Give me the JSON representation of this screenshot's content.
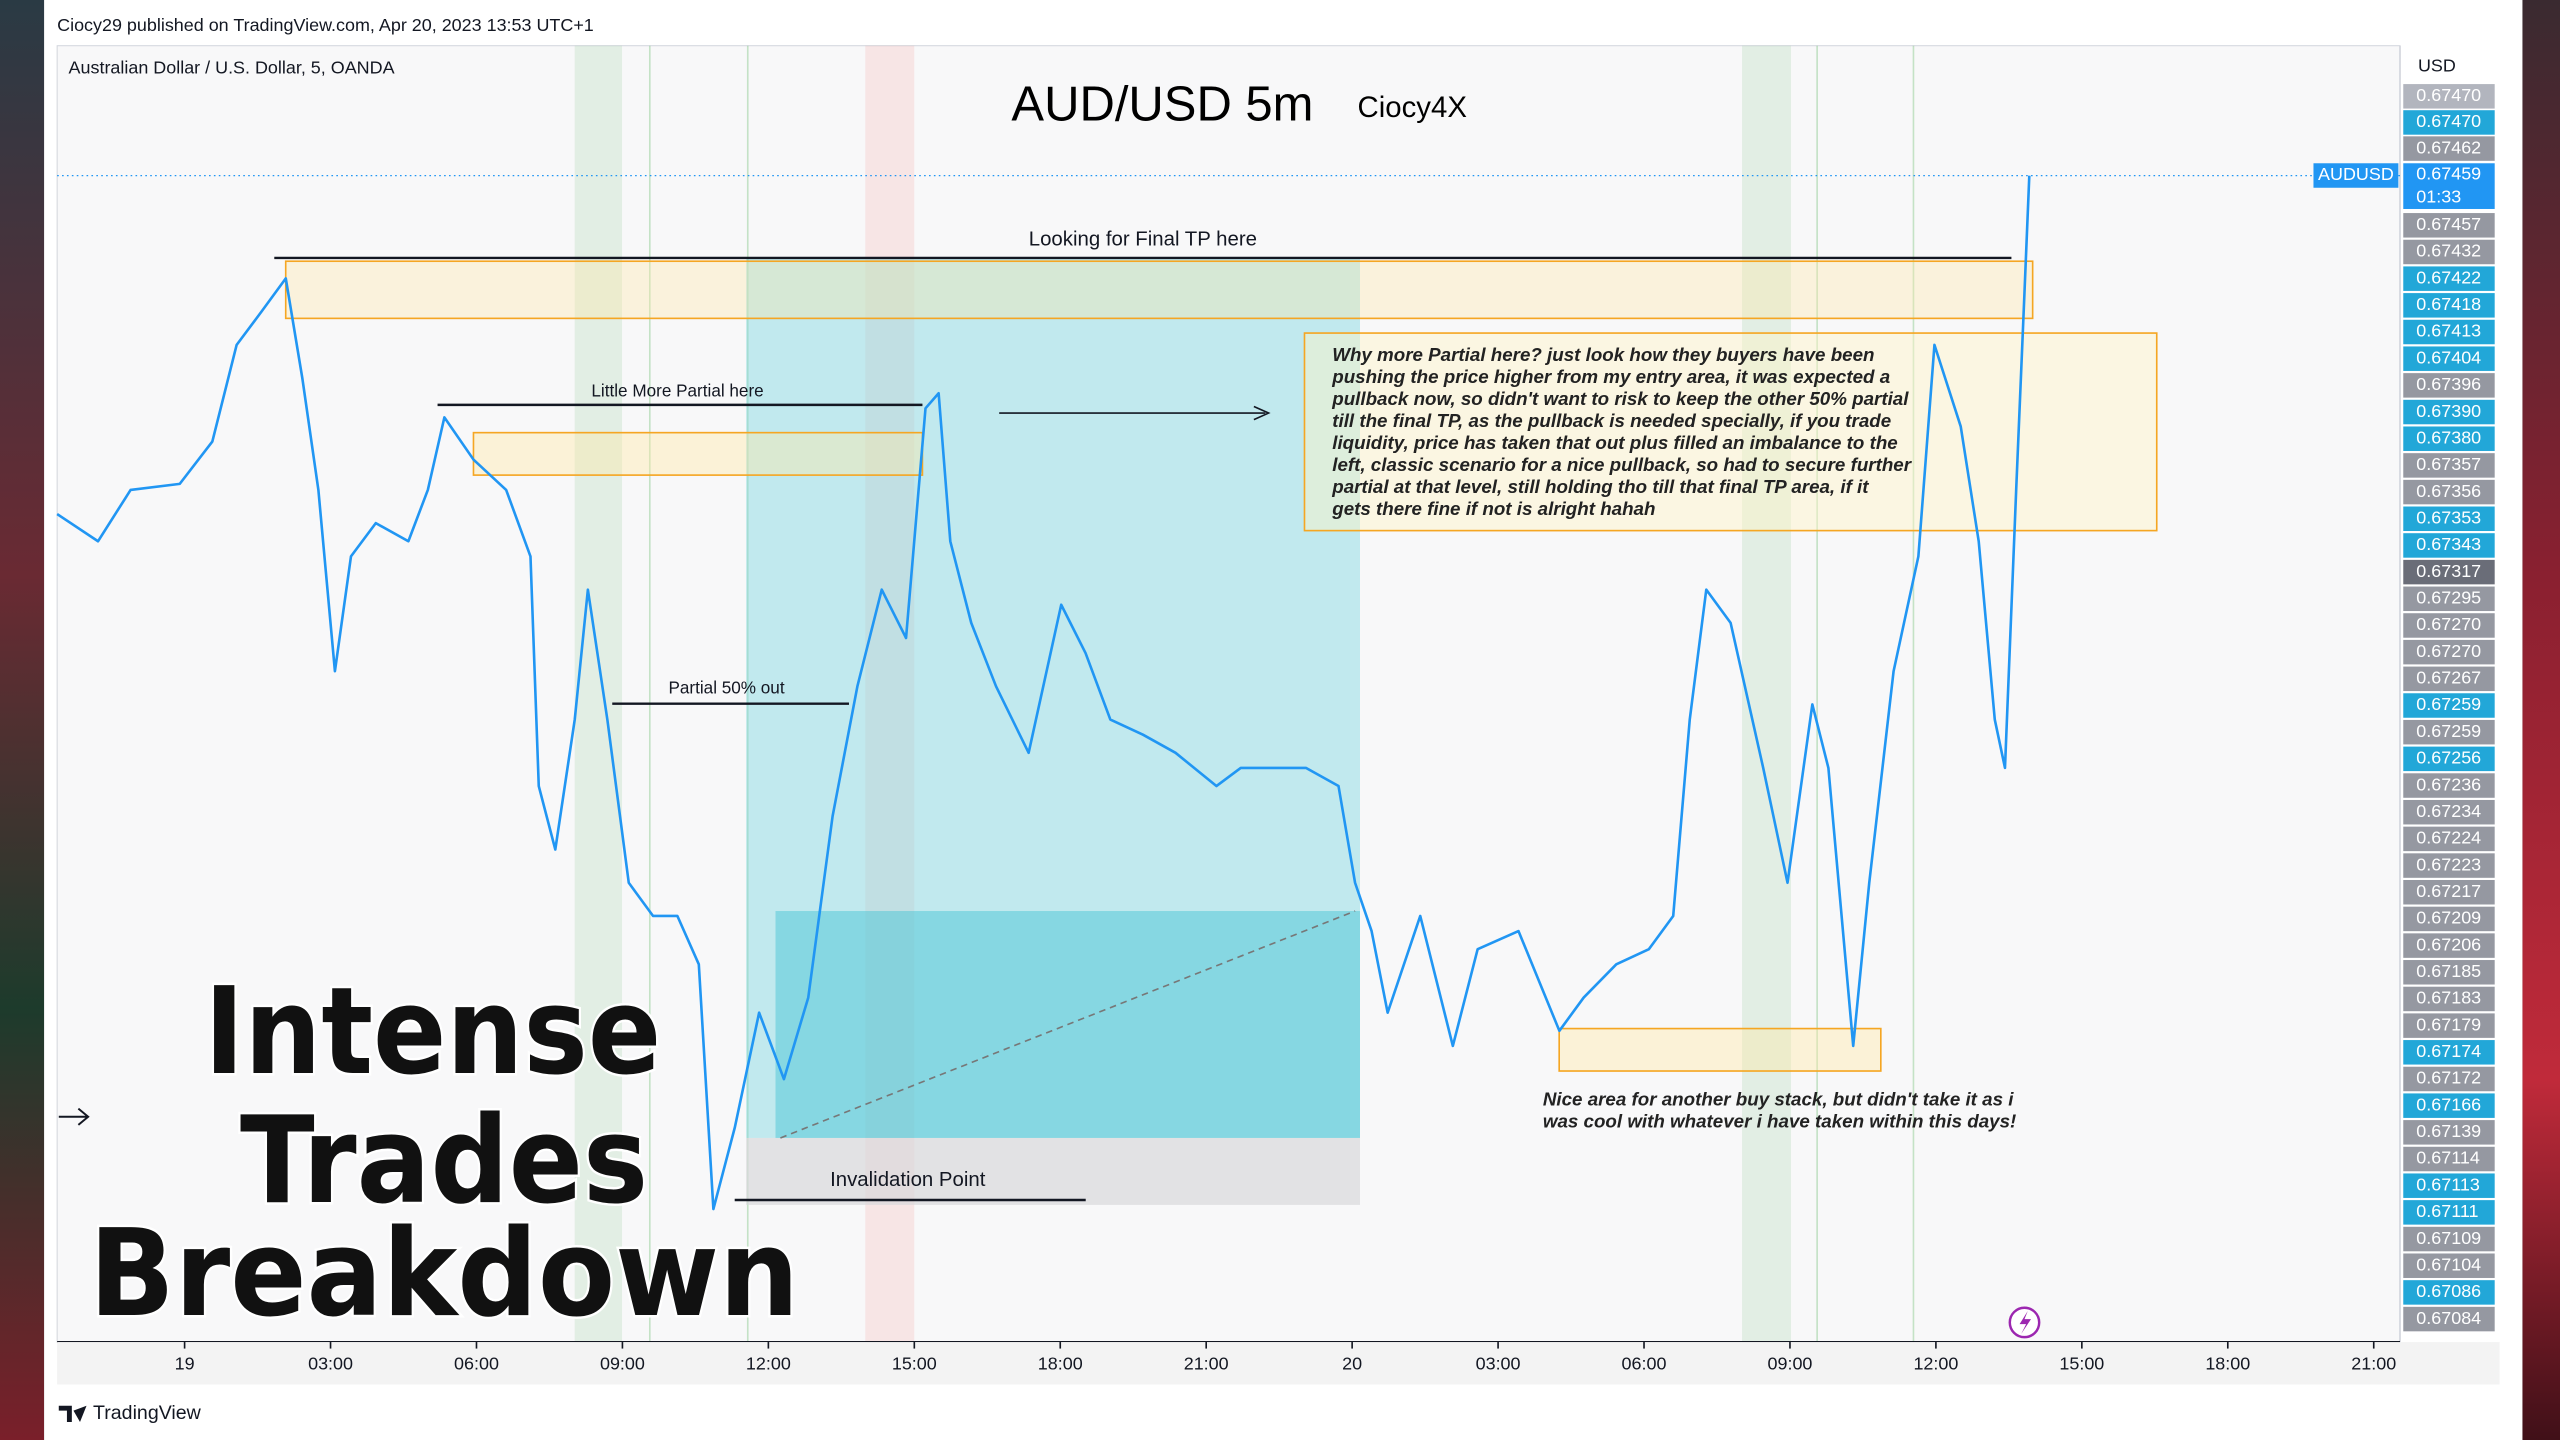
{
  "header": {
    "publisher": "Ciocy29 published on TradingView.com, Apr 20, 2023 13:53 UTC+1",
    "footer": "TradingView"
  },
  "chart_data": {
    "type": "line",
    "symbol_description": "Australian Dollar / U.S. Dollar, 5, OANDA",
    "title": "AUD/USD 5m",
    "subtitle": "Ciocy4X",
    "y_axis_unit": "USD",
    "xlim": [
      -2.62,
      45.54
    ],
    "ylim": [
      0.67073,
      0.67502
    ],
    "grid": false,
    "xticks": [
      {
        "value": 0,
        "label": "19"
      },
      {
        "value": 3,
        "label": "03:00"
      },
      {
        "value": 6,
        "label": "06:00"
      },
      {
        "value": 9,
        "label": "09:00"
      },
      {
        "value": 12,
        "label": "12:00"
      },
      {
        "value": 15,
        "label": "15:00"
      },
      {
        "value": 18,
        "label": "18:00"
      },
      {
        "value": 21,
        "label": "21:00"
      },
      {
        "value": 24,
        "label": "20"
      },
      {
        "value": 27,
        "label": "03:00"
      },
      {
        "value": 30,
        "label": "06:00"
      },
      {
        "value": 33,
        "label": "09:00"
      },
      {
        "value": 36,
        "label": "12:00"
      },
      {
        "value": 39,
        "label": "15:00"
      },
      {
        "value": 42,
        "label": "18:00"
      },
      {
        "value": 45,
        "label": "21:00"
      }
    ],
    "x": [
      -2.62,
      -1.78,
      -1.11,
      -0.1,
      0.57,
      1.07,
      1.58,
      2.08,
      2.42,
      2.75,
      3.09,
      3.42,
      3.93,
      4.6,
      5.0,
      5.34,
      5.94,
      6.61,
      7.11,
      7.28,
      7.62,
      8.02,
      8.29,
      8.69,
      9.13,
      9.63,
      10.13,
      10.57,
      10.87,
      11.31,
      11.81,
      12.32,
      12.82,
      13.32,
      13.83,
      14.33,
      14.83,
      15.23,
      15.5,
      15.74,
      16.17,
      16.68,
      17.35,
      18.02,
      18.52,
      19.03,
      19.7,
      20.37,
      21.21,
      21.71,
      22.38,
      23.05,
      23.72,
      24.06,
      24.4,
      24.73,
      25.4,
      26.07,
      26.58,
      27.42,
      28.26,
      28.76,
      29.43,
      30.1,
      30.6,
      30.94,
      31.28,
      31.78,
      32.45,
      32.95,
      33.46,
      33.79,
      34.3,
      34.63,
      35.13,
      35.64,
      35.97,
      36.51,
      36.88,
      37.21,
      37.42,
      37.65,
      37.82,
      37.92
    ],
    "series": [
      {
        "name": "AUDUSD",
        "color": "#2196f3",
        "values": [
          0.67347,
          0.67338,
          0.67355,
          0.67357,
          0.67371,
          0.67403,
          0.67414,
          0.67425,
          0.67392,
          0.67355,
          0.67295,
          0.67333,
          0.67344,
          0.67338,
          0.67355,
          0.67379,
          0.67365,
          0.67355,
          0.67333,
          0.67257,
          0.67236,
          0.67279,
          0.67322,
          0.67279,
          0.67225,
          0.67214,
          0.67214,
          0.67198,
          0.67117,
          0.67144,
          0.67182,
          0.6716,
          0.67187,
          0.67247,
          0.6729,
          0.67322,
          0.67306,
          0.67382,
          0.67387,
          0.67338,
          0.67311,
          0.6729,
          0.67268,
          0.67317,
          0.67301,
          0.67279,
          0.67274,
          0.67268,
          0.67257,
          0.67263,
          0.67263,
          0.67263,
          0.67257,
          0.67225,
          0.67209,
          0.67182,
          0.67214,
          0.67171,
          0.67203,
          0.67209,
          0.67176,
          0.67187,
          0.67198,
          0.67203,
          0.67214,
          0.67279,
          0.67322,
          0.67311,
          0.67263,
          0.67225,
          0.67284,
          0.67263,
          0.67171,
          0.67225,
          0.67295,
          0.67333,
          0.67403,
          0.67376,
          0.67338,
          0.67279,
          0.67263,
          0.67355,
          0.6742,
          0.67459
        ]
      }
    ],
    "current_price": {
      "symbol": "AUDUSD",
      "countdown": "01:33",
      "color": "#2196f3"
    },
    "price_labels": [
      {
        "value": 0.6747,
        "label": "0.67470"
      },
      {
        "value": 0.6747,
        "label": "0.67470"
      },
      0.67462,
      0.67459,
      0.67457,
      0.67432,
      0.67422,
      0.67418,
      0.67413,
      0.67404,
      0.67396,
      {
        "value": 0.6739,
        "label": "0.67390"
      },
      {
        "value": 0.6738,
        "label": "0.67380"
      },
      0.67357,
      0.67356,
      0.67353,
      0.67343,
      0.67317,
      0.67295,
      {
        "value": 0.6727,
        "label": "0.67270"
      },
      {
        "value": 0.6727,
        "label": "0.67270"
      },
      0.67267,
      0.67259,
      0.67259,
      0.67256,
      0.67236,
      0.67234,
      0.67224,
      0.67223,
      0.67217,
      0.67209,
      0.67206,
      0.67185,
      0.67183,
      0.67179,
      0.67174,
      0.67172,
      0.67166,
      0.67139,
      0.67114,
      0.67113,
      0.67111,
      0.67109,
      0.67104,
      0.67086,
      0.67084
    ],
    "price_label_colors": [
      "#b2b5be",
      "#22a7d8",
      "#9598a1",
      "#2196f3",
      "#9598a1",
      "#9598a1",
      "#22a7d8",
      "#22a7d8",
      "#22a7d8",
      "#22a7d8",
      "#9598a1",
      "#22a7d8",
      "#22a7d8",
      "#9598a1",
      "#9598a1",
      "#22a7d8",
      "#22a7d8",
      "#6a6d78",
      "#9598a1",
      "#9598a1",
      "#9598a1",
      "#9598a1",
      "#22a7d8",
      "#9598a1",
      "#22a7d8",
      "#9598a1",
      "#9598a1",
      "#9598a1",
      "#9598a1",
      "#9598a1",
      "#9598a1",
      "#9598a1",
      "#9598a1",
      "#9598a1",
      "#9598a1",
      "#22a7d8",
      "#9598a1",
      "#22a7d8",
      "#9598a1",
      "#9598a1",
      "#22a7d8",
      "#22a7d8",
      "#9598a1",
      "#9598a1",
      "#22a7d8",
      "#9598a1"
    ],
    "annotations": {
      "final_tp": "Looking for Final TP here",
      "more_partial": "Little More Partial here",
      "partial_50": "Partial 50% out",
      "invalidation": "Invalidation Point",
      "note": [
        "Why more Partial here? just look how they buyers have been",
        "pushing the price higher from my entry area, it was expected a",
        "pullback now, so didn't want to risk to keep the other 50% partial",
        "till the final TP, as the pullback is needed specially, if you trade",
        "liquidity, price has taken that out plus filled an imbalance to the",
        "left, classic scenario for a nice pullback, so had to secure further",
        "partial at that level, still holding tho till that final TP area, if it",
        "gets there fine if not is alright hahah"
      ],
      "buy_area": [
        "Nice area for another buy stack, but didn't take it as i",
        "was cool with whatever i have taken within this days!"
      ]
    },
    "overlay_title": [
      "Intense",
      "Trades",
      "Breakdown"
    ]
  }
}
